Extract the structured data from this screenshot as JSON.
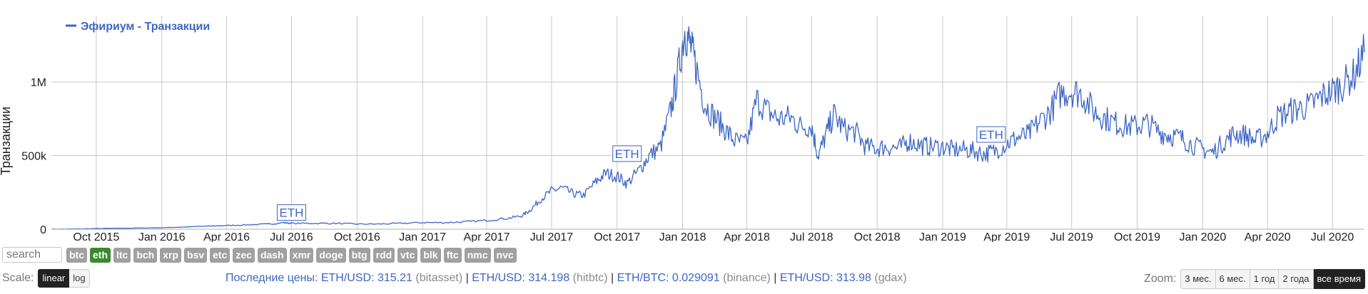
{
  "chart_data": {
    "type": "line",
    "title": "",
    "xlabel": "",
    "ylabel": "Транзакции",
    "legend": {
      "placement": "top-left",
      "entries": [
        "Эфириум - Транзакции"
      ]
    },
    "ylim": [
      0,
      1450000
    ],
    "y_ticks": [
      {
        "value": 0,
        "label": "0"
      },
      {
        "value": 500000,
        "label": "500k"
      },
      {
        "value": 1000000,
        "label": "1M"
      }
    ],
    "x_range": [
      "2015-07-30",
      "2020-08-15"
    ],
    "x_ticks": [
      {
        "date": "2015-10-01",
        "label": "Oct 2015"
      },
      {
        "date": "2016-01-01",
        "label": "Jan 2016"
      },
      {
        "date": "2016-04-01",
        "label": "Apr 2016"
      },
      {
        "date": "2016-07-01",
        "label": "Jul 2016"
      },
      {
        "date": "2016-10-01",
        "label": "Oct 2016"
      },
      {
        "date": "2017-01-01",
        "label": "Jan 2017"
      },
      {
        "date": "2017-04-01",
        "label": "Apr 2017"
      },
      {
        "date": "2017-07-01",
        "label": "Jul 2017"
      },
      {
        "date": "2017-10-01",
        "label": "Oct 2017"
      },
      {
        "date": "2018-01-01",
        "label": "Jan 2018"
      },
      {
        "date": "2018-04-01",
        "label": "Apr 2018"
      },
      {
        "date": "2018-07-01",
        "label": "Jul 2018"
      },
      {
        "date": "2018-10-01",
        "label": "Oct 2018"
      },
      {
        "date": "2019-01-01",
        "label": "Jan 2019"
      },
      {
        "date": "2019-04-01",
        "label": "Apr 2019"
      },
      {
        "date": "2019-07-01",
        "label": "Jul 2019"
      },
      {
        "date": "2019-10-01",
        "label": "Oct 2019"
      },
      {
        "date": "2020-01-01",
        "label": "Jan 2020"
      },
      {
        "date": "2020-04-01",
        "label": "Apr 2020"
      },
      {
        "date": "2020-07-01",
        "label": "Jul 2020"
      }
    ],
    "grid": true,
    "color": "#3d66c4",
    "series": [
      {
        "name": "Эфириум - Транзакции",
        "x": [
          "2015-07-30",
          "2015-09-01",
          "2015-10-01",
          "2015-11-01",
          "2015-12-01",
          "2016-01-01",
          "2016-02-01",
          "2016-03-01",
          "2016-04-01",
          "2016-05-01",
          "2016-06-01",
          "2016-06-20",
          "2016-07-01",
          "2016-08-01",
          "2016-09-01",
          "2016-10-01",
          "2016-11-01",
          "2016-12-01",
          "2017-01-01",
          "2017-02-01",
          "2017-03-01",
          "2017-04-01",
          "2017-05-01",
          "2017-05-20",
          "2017-06-01",
          "2017-06-15",
          "2017-07-01",
          "2017-07-15",
          "2017-08-01",
          "2017-08-15",
          "2017-09-01",
          "2017-09-15",
          "2017-10-01",
          "2017-10-15",
          "2017-11-01",
          "2017-11-15",
          "2017-12-01",
          "2017-12-15",
          "2017-12-25",
          "2018-01-04",
          "2018-01-12",
          "2018-01-20",
          "2018-02-01",
          "2018-02-15",
          "2018-03-01",
          "2018-03-15",
          "2018-04-01",
          "2018-04-15",
          "2018-05-01",
          "2018-05-15",
          "2018-06-01",
          "2018-06-15",
          "2018-07-01",
          "2018-07-10",
          "2018-07-20",
          "2018-08-01",
          "2018-08-15",
          "2018-09-01",
          "2018-09-15",
          "2018-10-01",
          "2018-10-15",
          "2018-11-01",
          "2018-11-15",
          "2018-12-01",
          "2018-12-15",
          "2019-01-01",
          "2019-01-15",
          "2019-02-01",
          "2019-02-15",
          "2019-03-01",
          "2019-03-15",
          "2019-04-01",
          "2019-04-15",
          "2019-05-01",
          "2019-05-15",
          "2019-06-01",
          "2019-06-15",
          "2019-07-01",
          "2019-07-15",
          "2019-08-01",
          "2019-08-15",
          "2019-09-01",
          "2019-09-15",
          "2019-10-01",
          "2019-10-15",
          "2019-11-01",
          "2019-11-15",
          "2019-12-01",
          "2019-12-15",
          "2020-01-01",
          "2020-01-15",
          "2020-02-01",
          "2020-02-15",
          "2020-03-01",
          "2020-03-15",
          "2020-04-01",
          "2020-04-15",
          "2020-05-01",
          "2020-05-15",
          "2020-06-01",
          "2020-06-15",
          "2020-07-01",
          "2020-07-15",
          "2020-08-01",
          "2020-08-15"
        ],
        "y": [
          0,
          2000,
          4000,
          6000,
          8000,
          10000,
          15000,
          20000,
          25000,
          30000,
          35000,
          45000,
          40000,
          40000,
          40000,
          35000,
          35000,
          40000,
          45000,
          45000,
          50000,
          60000,
          75000,
          90000,
          130000,
          200000,
          260000,
          280000,
          240000,
          230000,
          320000,
          380000,
          360000,
          310000,
          400000,
          500000,
          560000,
          800000,
          1050000,
          1350000,
          1250000,
          1100000,
          850000,
          760000,
          680000,
          600000,
          580000,
          880000,
          800000,
          750000,
          760000,
          700000,
          700000,
          500000,
          620000,
          780000,
          680000,
          660000,
          560000,
          550000,
          560000,
          550000,
          600000,
          570000,
          560000,
          560000,
          540000,
          540000,
          530000,
          510000,
          530000,
          580000,
          620000,
          640000,
          720000,
          800000,
          920000,
          940000,
          920000,
          800000,
          760000,
          720000,
          700000,
          700000,
          720000,
          660000,
          640000,
          620000,
          580000,
          540000,
          520000,
          600000,
          650000,
          640000,
          600000,
          650000,
          760000,
          800000,
          820000,
          840000,
          900000,
          940000,
          980000,
          1050000,
          1200000
        ]
      }
    ],
    "annotations": [
      {
        "label": "ETH",
        "date": "2016-07-01",
        "y": 60000
      },
      {
        "label": "ETH",
        "date": "2017-10-15",
        "y": 460000
      },
      {
        "label": "ETH",
        "date": "2019-03-10",
        "y": 590000
      }
    ]
  },
  "controls": {
    "search_placeholder": "search",
    "coins": [
      "btc",
      "eth",
      "ltc",
      "bch",
      "xrp",
      "bsv",
      "etc",
      "zec",
      "dash",
      "xmr",
      "doge",
      "btg",
      "rdd",
      "vtc",
      "blk",
      "ftc",
      "nmc",
      "nvc"
    ],
    "active_coin": "eth",
    "scale_label": "Scale:",
    "scale_options": [
      "linear",
      "log"
    ],
    "active_scale": "linear",
    "zoom_label": "Zoom:",
    "zoom_options": [
      "3 мес.",
      "6 мес.",
      "1 год",
      "2 года",
      "все время"
    ],
    "active_zoom": "все время"
  },
  "prices": {
    "label": "Последние цены:",
    "items": [
      {
        "pair": "ETH/USD:",
        "value": "315.21",
        "exchange": "(bitasset)"
      },
      {
        "pair": "ETH/USD:",
        "value": "314.198",
        "exchange": "(hitbtc)"
      },
      {
        "pair": "ETH/BTC:",
        "value": "0.029091",
        "exchange": "(binance)"
      },
      {
        "pair": "ETH/USD:",
        "value": "313.98",
        "exchange": "(gdax)"
      }
    ],
    "separator": "|"
  }
}
